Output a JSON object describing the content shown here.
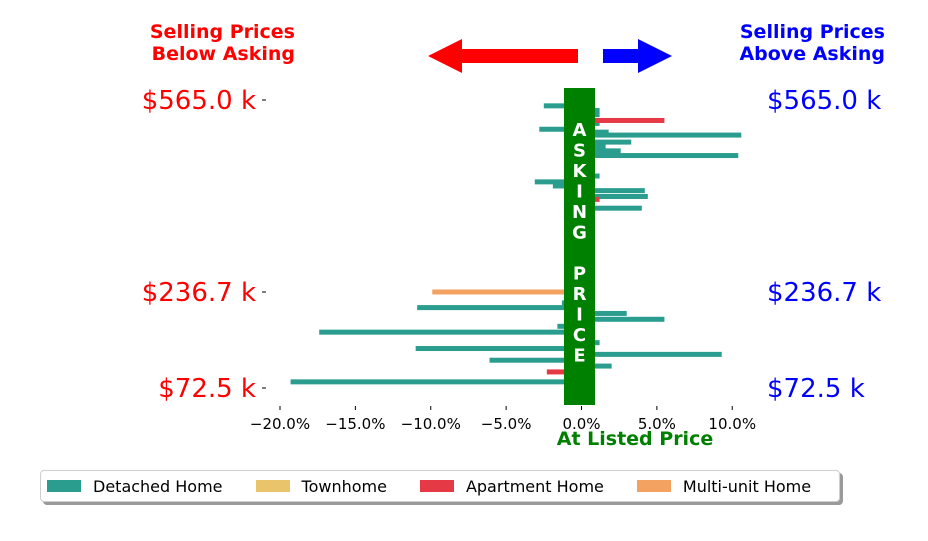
{
  "chart_data": {
    "type": "bar",
    "orientation": "horizontal",
    "corner_labels": {
      "left": [
        "Selling Prices",
        "Below Asking"
      ],
      "right": [
        "Selling Prices",
        "Above Asking"
      ],
      "left_color": "#ff0000",
      "right_color": "#0000ff"
    },
    "center_label": "ASKING PRICE",
    "center_color": "#008000",
    "xlabel": "At Listed Price",
    "xlabel_color": "#008000",
    "xlim": [
      -20,
      12
    ],
    "xticks": [
      -20,
      -15,
      -10,
      -5,
      0,
      5,
      10
    ],
    "xtick_labels": [
      "−20.0%",
      "−15.0%",
      "−10.0%",
      "−5.0%",
      "0.0%",
      "5.0%",
      "10.0%"
    ],
    "ylim": [
      72.5,
      565.0
    ],
    "yticks": [
      565.0,
      236.7,
      72.5
    ],
    "ytick_labels_left": [
      "$565.0 k",
      "$236.7 k",
      "$72.5 k"
    ],
    "ytick_labels_right": [
      "$565.0 k",
      "$236.7 k",
      "$72.5 k"
    ],
    "legend_position": "bottom",
    "series": [
      {
        "name": "Detached Home",
        "color": "#2a9d8f",
        "points": [
          {
            "price": 555,
            "pct": -2.5
          },
          {
            "price": 547,
            "pct": 1.2
          },
          {
            "price": 540,
            "pct": 1.2
          },
          {
            "price": 525,
            "pct": 1.2
          },
          {
            "price": 515,
            "pct": -2.8
          },
          {
            "price": 510,
            "pct": 1.8
          },
          {
            "price": 505,
            "pct": 10.6
          },
          {
            "price": 493,
            "pct": 3.3
          },
          {
            "price": 485,
            "pct": 1.6
          },
          {
            "price": 478,
            "pct": 2.6
          },
          {
            "price": 470,
            "pct": 10.4
          },
          {
            "price": 435,
            "pct": 1.2
          },
          {
            "price": 425,
            "pct": -3.1
          },
          {
            "price": 418,
            "pct": -1.9
          },
          {
            "price": 410,
            "pct": 4.2
          },
          {
            "price": 400,
            "pct": 4.4
          },
          {
            "price": 380,
            "pct": 4.0
          },
          {
            "price": 218,
            "pct": -1.3
          },
          {
            "price": 210,
            "pct": -10.9
          },
          {
            "price": 200,
            "pct": 3.0
          },
          {
            "price": 190,
            "pct": 5.5
          },
          {
            "price": 178,
            "pct": -1.6
          },
          {
            "price": 168,
            "pct": -17.4
          },
          {
            "price": 150,
            "pct": 1.2
          },
          {
            "price": 140,
            "pct": -11.0
          },
          {
            "price": 130,
            "pct": 9.3
          },
          {
            "price": 120,
            "pct": -6.1
          },
          {
            "price": 110,
            "pct": 2.0
          },
          {
            "price": 83,
            "pct": -19.3
          }
        ]
      },
      {
        "name": "Townhome",
        "color": "#e9c46a",
        "points": [
          {
            "price": 295,
            "pct": 0.8
          },
          {
            "price": 250,
            "pct": 0.9
          }
        ]
      },
      {
        "name": "Apartment Home",
        "color": "#e63946",
        "points": [
          {
            "price": 530,
            "pct": 5.5
          },
          {
            "price": 445,
            "pct": -0.9
          },
          {
            "price": 395,
            "pct": 1.2
          },
          {
            "price": 100,
            "pct": -2.3
          }
        ]
      },
      {
        "name": "Multi-unit Home",
        "color": "#f4a261",
        "points": [
          {
            "price": 236.7,
            "pct": -9.9
          }
        ]
      }
    ]
  }
}
